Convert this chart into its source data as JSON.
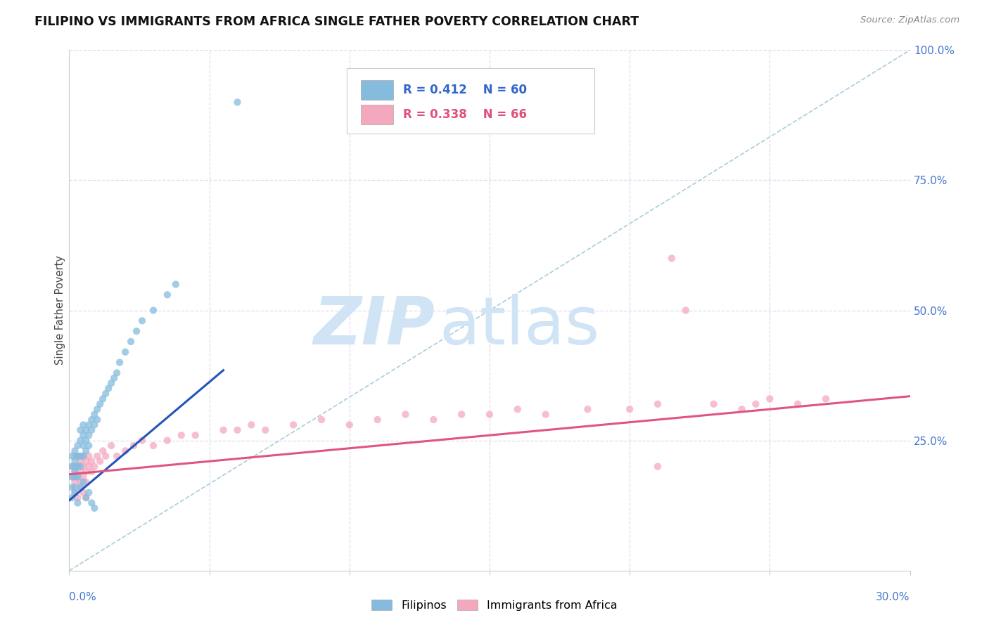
{
  "title": "FILIPINO VS IMMIGRANTS FROM AFRICA SINGLE FATHER POVERTY CORRELATION CHART",
  "source": "Source: ZipAtlas.com",
  "ylabel": "Single Father Poverty",
  "xmin": 0.0,
  "xmax": 0.3,
  "ymin": 0.0,
  "ymax": 1.0,
  "legend_label1": "Filipinos",
  "legend_label2": "Immigrants from Africa",
  "blue_color": "#85bbdd",
  "pink_color": "#f4a8be",
  "blue_line_color": "#2255bb",
  "pink_line_color": "#e05580",
  "diag_color": "#aaccdd",
  "grid_color": "#ddddee",
  "watermark_color": "#d0e4f5",
  "blue_trend_x0": 0.0,
  "blue_trend_y0": 0.135,
  "blue_trend_x1": 0.055,
  "blue_trend_y1": 0.385,
  "pink_trend_x0": 0.0,
  "pink_trend_y0": 0.185,
  "pink_trend_x1": 0.3,
  "pink_trend_y1": 0.335,
  "blue_x": [
    0.001,
    0.001,
    0.001,
    0.001,
    0.002,
    0.002,
    0.002,
    0.002,
    0.002,
    0.002,
    0.003,
    0.003,
    0.003,
    0.003,
    0.003,
    0.004,
    0.004,
    0.004,
    0.004,
    0.005,
    0.005,
    0.005,
    0.005,
    0.006,
    0.006,
    0.006,
    0.007,
    0.007,
    0.007,
    0.008,
    0.008,
    0.009,
    0.009,
    0.01,
    0.01,
    0.011,
    0.012,
    0.013,
    0.014,
    0.015,
    0.016,
    0.017,
    0.018,
    0.02,
    0.022,
    0.024,
    0.026,
    0.03,
    0.035,
    0.038,
    0.001,
    0.002,
    0.003,
    0.004,
    0.005,
    0.006,
    0.007,
    0.008,
    0.009,
    0.06
  ],
  "blue_y": [
    0.18,
    0.2,
    0.22,
    0.16,
    0.19,
    0.21,
    0.23,
    0.18,
    0.2,
    0.16,
    0.22,
    0.24,
    0.2,
    0.18,
    0.22,
    0.25,
    0.27,
    0.22,
    0.2,
    0.26,
    0.24,
    0.22,
    0.28,
    0.27,
    0.25,
    0.23,
    0.28,
    0.26,
    0.24,
    0.29,
    0.27,
    0.3,
    0.28,
    0.31,
    0.29,
    0.32,
    0.33,
    0.34,
    0.35,
    0.36,
    0.37,
    0.38,
    0.4,
    0.42,
    0.44,
    0.46,
    0.48,
    0.5,
    0.53,
    0.55,
    0.14,
    0.15,
    0.13,
    0.16,
    0.17,
    0.14,
    0.15,
    0.13,
    0.12,
    0.9
  ],
  "pink_x": [
    0.001,
    0.001,
    0.002,
    0.002,
    0.002,
    0.003,
    0.003,
    0.003,
    0.004,
    0.004,
    0.004,
    0.005,
    0.005,
    0.005,
    0.006,
    0.006,
    0.006,
    0.007,
    0.007,
    0.008,
    0.008,
    0.009,
    0.01,
    0.011,
    0.012,
    0.013,
    0.015,
    0.017,
    0.02,
    0.023,
    0.026,
    0.03,
    0.035,
    0.04,
    0.045,
    0.055,
    0.06,
    0.065,
    0.07,
    0.08,
    0.09,
    0.1,
    0.11,
    0.12,
    0.13,
    0.14,
    0.15,
    0.16,
    0.17,
    0.185,
    0.2,
    0.21,
    0.215,
    0.22,
    0.23,
    0.24,
    0.245,
    0.25,
    0.26,
    0.27,
    0.002,
    0.003,
    0.004,
    0.005,
    0.006,
    0.21
  ],
  "pink_y": [
    0.18,
    0.2,
    0.17,
    0.19,
    0.22,
    0.18,
    0.2,
    0.22,
    0.17,
    0.19,
    0.21,
    0.18,
    0.2,
    0.22,
    0.17,
    0.19,
    0.21,
    0.2,
    0.22,
    0.19,
    0.21,
    0.2,
    0.22,
    0.21,
    0.23,
    0.22,
    0.24,
    0.22,
    0.23,
    0.24,
    0.25,
    0.24,
    0.25,
    0.26,
    0.26,
    0.27,
    0.27,
    0.28,
    0.27,
    0.28,
    0.29,
    0.28,
    0.29,
    0.3,
    0.29,
    0.3,
    0.3,
    0.31,
    0.3,
    0.31,
    0.31,
    0.32,
    0.6,
    0.5,
    0.32,
    0.31,
    0.32,
    0.33,
    0.32,
    0.33,
    0.15,
    0.14,
    0.16,
    0.15,
    0.14,
    0.2
  ]
}
